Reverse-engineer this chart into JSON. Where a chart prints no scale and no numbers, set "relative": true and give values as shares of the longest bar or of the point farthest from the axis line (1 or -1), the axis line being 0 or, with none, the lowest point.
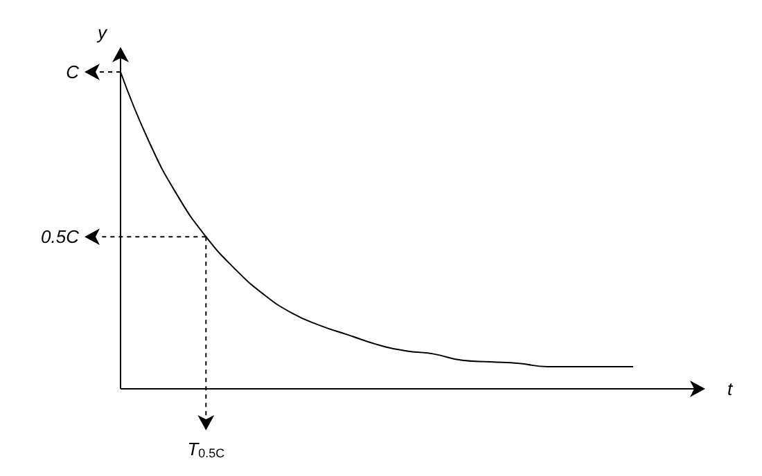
{
  "chart_data": {
    "type": "line",
    "relative": true,
    "xlabel": "t",
    "ylabel": "y",
    "color": "#000000",
    "categories": [
      null,
      null,
      null,
      null,
      null,
      null,
      null,
      null,
      null,
      null,
      null,
      null,
      null,
      null,
      null,
      null,
      null,
      null,
      null
    ],
    "values": [
      1.0,
      0.78,
      0.61,
      0.48,
      0.38,
      0.3,
      0.24,
      0.2,
      0.17,
      0.14,
      0.12,
      0.11,
      0.09,
      0.085,
      0.08,
      0.07,
      0.07,
      0.07,
      0.07
    ],
    "annotations": [
      "C",
      "0.5C",
      "T$_{0.5C}$"
    ]
  }
}
